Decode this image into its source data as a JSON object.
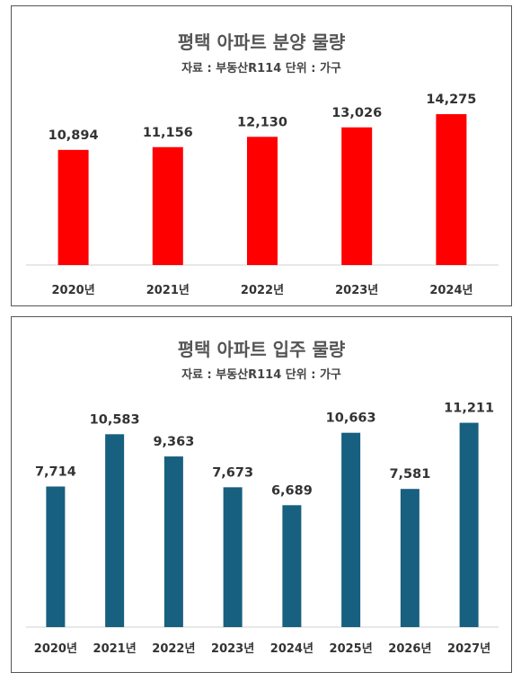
{
  "chart_data": [
    {
      "type": "bar",
      "title": "평택 아파트 분양 물량",
      "subtitle": "자료 : 부동산R114   단위 : 가구",
      "categories": [
        "2020년",
        "2021년",
        "2022년",
        "2023년",
        "2024년"
      ],
      "values": [
        10894,
        11156,
        12130,
        13026,
        14275
      ],
      "value_labels": [
        "10,894",
        "11,156",
        "12,130",
        "13,026",
        "14,275"
      ],
      "ylim": [
        0,
        17000
      ],
      "color": "#ff0000",
      "grid": false
    },
    {
      "type": "bar",
      "title": "평택 아파트 입주 물량",
      "subtitle": "자료 : 부동산R114   단위 : 가구",
      "categories": [
        "2020년",
        "2021년",
        "2022년",
        "2023년",
        "2024년",
        "2025년",
        "2026년",
        "2027년"
      ],
      "values": [
        7714,
        10583,
        9363,
        7673,
        6689,
        10663,
        7581,
        11211
      ],
      "value_labels": [
        "7,714",
        "10,583",
        "9,363",
        "7,673",
        "6,689",
        "10,663",
        "7,581",
        "11,211"
      ],
      "ylim": [
        0,
        14000
      ],
      "color": "#17607f",
      "grid": false
    }
  ]
}
